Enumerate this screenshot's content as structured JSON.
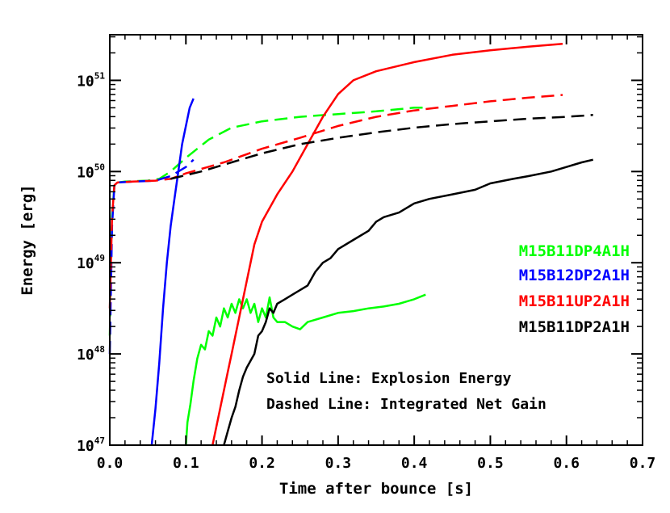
{
  "chart_data": {
    "type": "line",
    "xlabel": "Time after bounce [s]",
    "ylabel": "Energy [erg]",
    "xlim": [
      0.0,
      0.7
    ],
    "ylim_log10": [
      47,
      51.5
    ],
    "yscale": "log",
    "grid": false,
    "legend_placement": "right",
    "x_ticks": [
      "0.0",
      "0.1",
      "0.2",
      "0.3",
      "0.4",
      "0.5",
      "0.6",
      "0.7"
    ],
    "y_ticks": [
      {
        "base": "10",
        "exp": "47"
      },
      {
        "base": "10",
        "exp": "48"
      },
      {
        "base": "10",
        "exp": "49"
      },
      {
        "base": "10",
        "exp": "50"
      },
      {
        "base": "10",
        "exp": "51"
      }
    ],
    "notes": [
      "Solid Line: Explosion Energy",
      "Dashed Line: Integrated Net Gain"
    ],
    "series": [
      {
        "name": "M15B11DP4A1H",
        "color": "#00ff00",
        "solid": [
          [
            0.1,
            47.0
          ],
          [
            0.102,
            47.25
          ],
          [
            0.106,
            47.45
          ],
          [
            0.11,
            47.7
          ],
          [
            0.115,
            47.95
          ],
          [
            0.12,
            48.1
          ],
          [
            0.125,
            48.05
          ],
          [
            0.13,
            48.25
          ],
          [
            0.135,
            48.2
          ],
          [
            0.14,
            48.4
          ],
          [
            0.145,
            48.3
          ],
          [
            0.15,
            48.5
          ],
          [
            0.155,
            48.4
          ],
          [
            0.16,
            48.55
          ],
          [
            0.165,
            48.45
          ],
          [
            0.17,
            48.6
          ],
          [
            0.175,
            48.5
          ],
          [
            0.18,
            48.6
          ],
          [
            0.185,
            48.45
          ],
          [
            0.19,
            48.55
          ],
          [
            0.195,
            48.35
          ],
          [
            0.2,
            48.5
          ],
          [
            0.205,
            48.4
          ],
          [
            0.21,
            48.62
          ],
          [
            0.215,
            48.4
          ],
          [
            0.22,
            48.35
          ],
          [
            0.23,
            48.35
          ],
          [
            0.24,
            48.3
          ],
          [
            0.25,
            48.27
          ],
          [
            0.26,
            48.35
          ],
          [
            0.28,
            48.4
          ],
          [
            0.3,
            48.45
          ],
          [
            0.32,
            48.47
          ],
          [
            0.34,
            48.5
          ],
          [
            0.36,
            48.52
          ],
          [
            0.38,
            48.55
          ],
          [
            0.4,
            48.6
          ],
          [
            0.415,
            48.65
          ]
        ],
        "dashed": [
          [
            0.0,
            48.2
          ],
          [
            0.003,
            49.5
          ],
          [
            0.006,
            49.85
          ],
          [
            0.01,
            49.88
          ],
          [
            0.02,
            49.89
          ],
          [
            0.05,
            49.9
          ],
          [
            0.065,
            49.92
          ],
          [
            0.08,
            50.0
          ],
          [
            0.1,
            50.15
          ],
          [
            0.13,
            50.35
          ],
          [
            0.16,
            50.48
          ],
          [
            0.2,
            50.55
          ],
          [
            0.25,
            50.6
          ],
          [
            0.3,
            50.63
          ],
          [
            0.35,
            50.66
          ],
          [
            0.4,
            50.7
          ],
          [
            0.415,
            50.7
          ]
        ]
      },
      {
        "name": "M15B12DP2A1H",
        "color": "#0000ff",
        "solid": [
          [
            0.055,
            47.0
          ],
          [
            0.06,
            47.4
          ],
          [
            0.065,
            47.9
          ],
          [
            0.07,
            48.5
          ],
          [
            0.075,
            49.0
          ],
          [
            0.08,
            49.4
          ],
          [
            0.085,
            49.7
          ],
          [
            0.09,
            50.0
          ],
          [
            0.095,
            50.3
          ],
          [
            0.1,
            50.5
          ],
          [
            0.105,
            50.7
          ],
          [
            0.11,
            50.8
          ]
        ],
        "dashed": [
          [
            0.0,
            48.0
          ],
          [
            0.003,
            49.4
          ],
          [
            0.006,
            49.85
          ],
          [
            0.01,
            49.88
          ],
          [
            0.03,
            49.89
          ],
          [
            0.06,
            49.9
          ],
          [
            0.08,
            49.95
          ],
          [
            0.1,
            50.05
          ],
          [
            0.11,
            50.13
          ]
        ]
      },
      {
        "name": "M15B11UP2A1H",
        "color": "#ff0000",
        "solid": [
          [
            0.135,
            47.0
          ],
          [
            0.14,
            47.2
          ],
          [
            0.145,
            47.4
          ],
          [
            0.15,
            47.6
          ],
          [
            0.155,
            47.8
          ],
          [
            0.16,
            48.0
          ],
          [
            0.165,
            48.2
          ],
          [
            0.17,
            48.4
          ],
          [
            0.175,
            48.6
          ],
          [
            0.18,
            48.8
          ],
          [
            0.19,
            49.2
          ],
          [
            0.2,
            49.45
          ],
          [
            0.21,
            49.6
          ],
          [
            0.22,
            49.75
          ],
          [
            0.24,
            50.0
          ],
          [
            0.26,
            50.3
          ],
          [
            0.28,
            50.6
          ],
          [
            0.3,
            50.85
          ],
          [
            0.32,
            51.0
          ],
          [
            0.35,
            51.1
          ],
          [
            0.4,
            51.2
          ],
          [
            0.45,
            51.28
          ],
          [
            0.5,
            51.33
          ],
          [
            0.55,
            51.37
          ],
          [
            0.595,
            51.4
          ]
        ],
        "dashed": [
          [
            0.0,
            48.5
          ],
          [
            0.003,
            49.5
          ],
          [
            0.006,
            49.85
          ],
          [
            0.01,
            49.88
          ],
          [
            0.03,
            49.89
          ],
          [
            0.06,
            49.9
          ],
          [
            0.08,
            49.92
          ],
          [
            0.1,
            49.98
          ],
          [
            0.15,
            50.1
          ],
          [
            0.2,
            50.25
          ],
          [
            0.25,
            50.37
          ],
          [
            0.3,
            50.5
          ],
          [
            0.35,
            50.6
          ],
          [
            0.4,
            50.67
          ],
          [
            0.45,
            50.72
          ],
          [
            0.5,
            50.77
          ],
          [
            0.55,
            50.81
          ],
          [
            0.595,
            50.84
          ]
        ]
      },
      {
        "name": "M15B11DP2A1H",
        "color": "#000000",
        "solid": [
          [
            0.15,
            47.0
          ],
          [
            0.155,
            47.15
          ],
          [
            0.16,
            47.3
          ],
          [
            0.165,
            47.42
          ],
          [
            0.17,
            47.6
          ],
          [
            0.175,
            47.75
          ],
          [
            0.18,
            47.85
          ],
          [
            0.19,
            48.0
          ],
          [
            0.195,
            48.2
          ],
          [
            0.2,
            48.25
          ],
          [
            0.205,
            48.35
          ],
          [
            0.21,
            48.5
          ],
          [
            0.215,
            48.45
          ],
          [
            0.22,
            48.55
          ],
          [
            0.23,
            48.6
          ],
          [
            0.24,
            48.65
          ],
          [
            0.25,
            48.7
          ],
          [
            0.26,
            48.75
          ],
          [
            0.27,
            48.9
          ],
          [
            0.28,
            49.0
          ],
          [
            0.29,
            49.05
          ],
          [
            0.3,
            49.15
          ],
          [
            0.32,
            49.25
          ],
          [
            0.34,
            49.35
          ],
          [
            0.35,
            49.45
          ],
          [
            0.36,
            49.5
          ],
          [
            0.38,
            49.55
          ],
          [
            0.4,
            49.65
          ],
          [
            0.42,
            49.7
          ],
          [
            0.45,
            49.75
          ],
          [
            0.48,
            49.8
          ],
          [
            0.5,
            49.87
          ],
          [
            0.53,
            49.92
          ],
          [
            0.55,
            49.95
          ],
          [
            0.58,
            50.0
          ],
          [
            0.6,
            50.05
          ],
          [
            0.62,
            50.1
          ],
          [
            0.635,
            50.13
          ]
        ],
        "dashed": [
          [
            0.08,
            49.92
          ],
          [
            0.12,
            50.0
          ],
          [
            0.16,
            50.1
          ],
          [
            0.2,
            50.2
          ],
          [
            0.25,
            50.3
          ],
          [
            0.3,
            50.37
          ],
          [
            0.35,
            50.43
          ],
          [
            0.4,
            50.48
          ],
          [
            0.45,
            50.52
          ],
          [
            0.5,
            50.55
          ],
          [
            0.55,
            50.58
          ],
          [
            0.6,
            50.6
          ],
          [
            0.635,
            50.62
          ]
        ]
      }
    ]
  }
}
